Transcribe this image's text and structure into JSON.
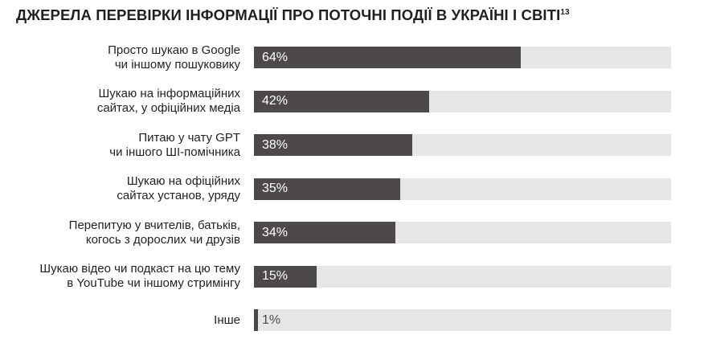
{
  "title": "ДЖЕРЕЛА ПЕРЕВІРКИ ІНФОРМАЦІЇ ПРО ПОТОЧНІ ПОДІЇ В УКРАЇНІ І СВІТІ",
  "title_footnote": "13",
  "colors": {
    "bar": "#4d494b",
    "track": "#e6e6e6",
    "text": "#231f20"
  },
  "chart_data": {
    "type": "bar",
    "orientation": "horizontal",
    "title": "ДЖЕРЕЛА ПЕРЕВІРКИ ІНФОРМАЦІЇ ПРО ПОТОЧНІ ПОДІЇ В УКРАЇНІ І СВІТІ",
    "categories": [
      "Просто шукаю в Google чи іншому пошуковику",
      "Шукаю на інформаційних сайтах, у офіційних медіа",
      "Питаю у чату GPT чи іншого ШІ-помічника",
      "Шукаю на офіційних сайтах установ, уряду",
      "Перепитую у вчителів, батьків, когось з дорослих чи друзів",
      "Шукаю відео чи подкаст на цю тему в YouTube чи іншому стримінгу",
      "Інше"
    ],
    "label_lines": [
      [
        "Просто шукаю в Google",
        "чи іншому пошуковику"
      ],
      [
        "Шукаю на інформаційних",
        "сайтах, у офіційних медіа"
      ],
      [
        "Питаю у чату GPT",
        "чи іншого ШІ-помічника"
      ],
      [
        "Шукаю на офіційних",
        "сайтах установ, уряду"
      ],
      [
        "Перепитую у вчителів, батьків,",
        "когось з дорослих чи друзів"
      ],
      [
        "Шукаю відео чи подкаст на цю тему",
        "в YouTube чи іншому стримінгу"
      ],
      [
        "Інше"
      ]
    ],
    "values": [
      64,
      42,
      38,
      35,
      34,
      15,
      1
    ],
    "value_labels": [
      "64%",
      "42%",
      "38%",
      "35%",
      "34%",
      "15%",
      "1%"
    ],
    "xlim": [
      0,
      100
    ],
    "unit": "%",
    "grid": false,
    "legend": "none"
  }
}
